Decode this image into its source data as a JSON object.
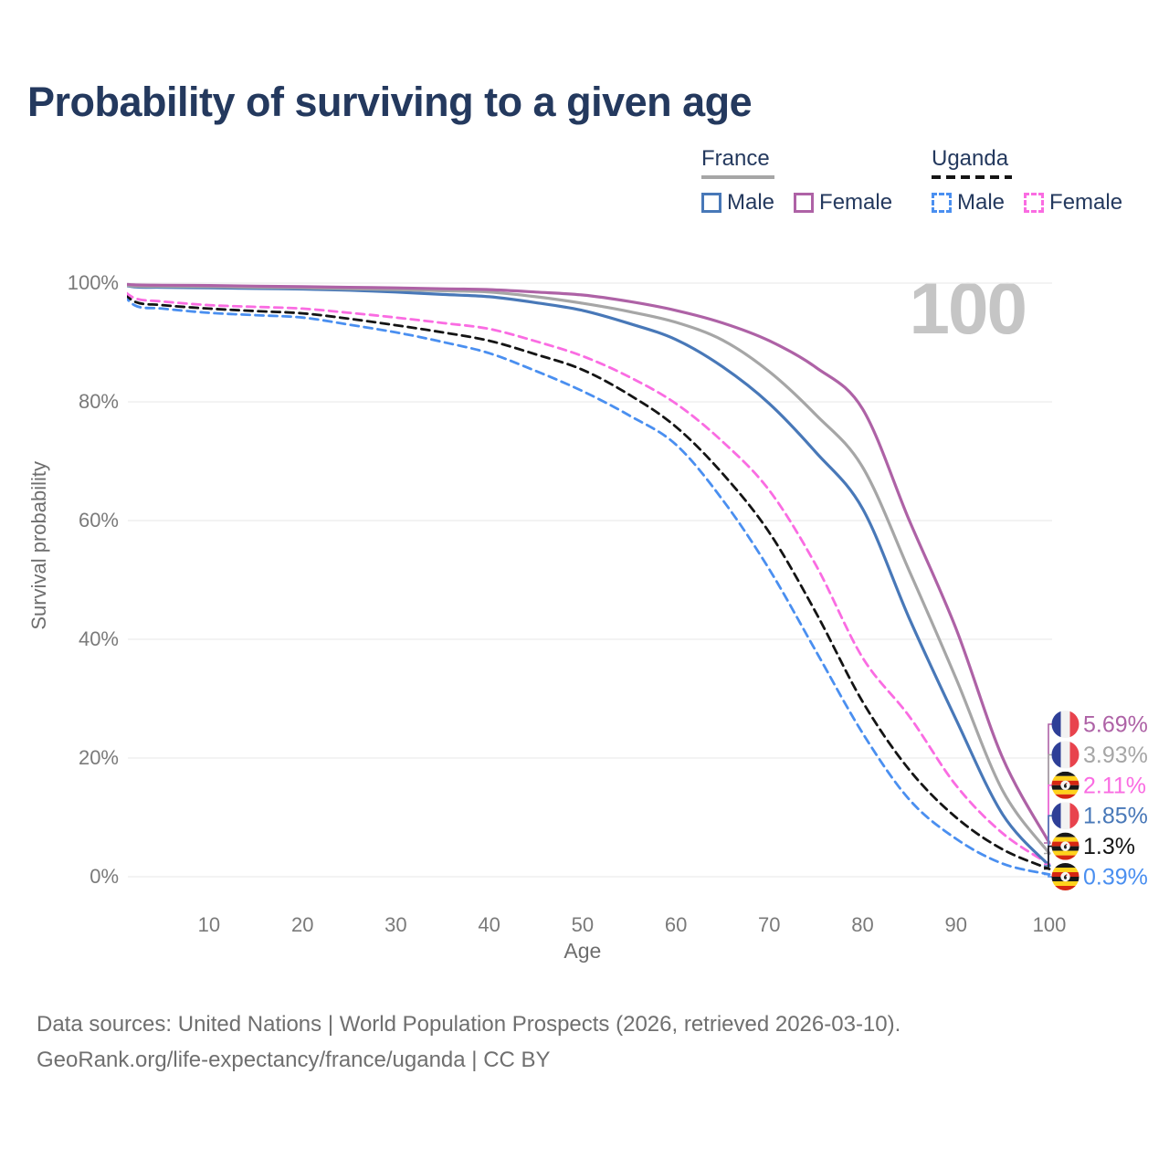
{
  "title": "Probability of surviving to a given age",
  "watermark_age": "100",
  "legend": {
    "groups": [
      {
        "name": "France",
        "line_style": "solid",
        "line_color": "#a6a6a6",
        "items": [
          {
            "label": "Male",
            "color": "#4878b8",
            "dashed": false
          },
          {
            "label": "Female",
            "color": "#ae62a6",
            "dashed": false
          }
        ]
      },
      {
        "name": "Uganda",
        "line_style": "dashed",
        "line_color": "#141414",
        "items": [
          {
            "label": "Male",
            "color": "#4a8ff0",
            "dashed": true
          },
          {
            "label": "Female",
            "color": "#fa6ce2",
            "dashed": true
          }
        ]
      }
    ]
  },
  "chart_data": {
    "type": "line",
    "title": "Probability of surviving to a given age",
    "xlabel": "Age",
    "ylabel": "Survival probability",
    "xlim": [
      0,
      100
    ],
    "ylim": [
      0,
      100
    ],
    "grid": "horizontal",
    "legend_position": "top-right",
    "x_ticks": [
      {
        "value": 10,
        "label": "10"
      },
      {
        "value": 20,
        "label": "20"
      },
      {
        "value": 30,
        "label": "30"
      },
      {
        "value": 40,
        "label": "40"
      },
      {
        "value": 50,
        "label": "50"
      },
      {
        "value": 60,
        "label": "60"
      },
      {
        "value": 70,
        "label": "70"
      },
      {
        "value": 80,
        "label": "80"
      },
      {
        "value": 90,
        "label": "90"
      },
      {
        "value": 100,
        "label": "100"
      }
    ],
    "y_ticks": [
      {
        "value": 0,
        "label": "0%"
      },
      {
        "value": 20,
        "label": "20%"
      },
      {
        "value": 40,
        "label": "40%"
      },
      {
        "value": 60,
        "label": "60%"
      },
      {
        "value": 80,
        "label": "80%"
      },
      {
        "value": 100,
        "label": "100%"
      }
    ],
    "x": [
      0,
      2,
      5,
      10,
      15,
      20,
      25,
      30,
      35,
      40,
      45,
      50,
      55,
      60,
      65,
      70,
      75,
      80,
      85,
      90,
      95,
      100
    ],
    "series": [
      {
        "id": "uganda-male",
        "name": "Uganda Male",
        "country": "Uganda",
        "sex": "Male",
        "flag": "uganda",
        "color": "#4a8ff0",
        "dashed": true,
        "end_label": "0.39%",
        "values": [
          100,
          96.3,
          95.7,
          95.0,
          94.6,
          94.2,
          93.0,
          91.7,
          90.1,
          88.2,
          85.2,
          81.8,
          77.7,
          72.8,
          63.5,
          51.8,
          38.0,
          24.2,
          13.0,
          6.4,
          2.2,
          0.39
        ]
      },
      {
        "id": "uganda-total",
        "name": "Uganda",
        "country": "Uganda",
        "sex": "Both",
        "flag": "uganda",
        "color": "#141414",
        "dashed": true,
        "end_label": "1.3%",
        "values": [
          100,
          96.9,
          96.3,
          95.7,
          95.3,
          94.9,
          94.0,
          92.9,
          91.7,
          90.3,
          88.0,
          85.4,
          81.2,
          75.8,
          67.9,
          58.0,
          44.5,
          29.5,
          18.0,
          10.0,
          4.6,
          1.3
        ]
      },
      {
        "id": "uganda-female",
        "name": "Uganda Female",
        "country": "Uganda",
        "sex": "Female",
        "flag": "uganda",
        "color": "#fa6ce2",
        "dashed": true,
        "end_label": "2.11%",
        "values": [
          100,
          97.5,
          96.9,
          96.3,
          96.0,
          95.7,
          95.0,
          94.2,
          93.3,
          92.3,
          90.2,
          87.7,
          84.2,
          79.7,
          73.3,
          65.1,
          52.5,
          36.9,
          27.0,
          15.4,
          7.3,
          2.11
        ]
      },
      {
        "id": "france-male",
        "name": "France Male",
        "country": "France",
        "sex": "Male",
        "flag": "france",
        "color": "#4878b8",
        "dashed": false,
        "end_label": "1.85%",
        "values": [
          100,
          99.35,
          99.3,
          99.2,
          99.1,
          99.0,
          98.8,
          98.5,
          98.1,
          97.7,
          96.7,
          95.4,
          93.2,
          90.5,
          85.9,
          79.7,
          71.5,
          62.0,
          43.5,
          26.5,
          10.5,
          1.85
        ]
      },
      {
        "id": "france-total",
        "name": "France",
        "country": "France",
        "sex": "Both",
        "flag": "france",
        "color": "#a6a6a6",
        "dashed": false,
        "end_label": "3.93%",
        "values": [
          100,
          99.5,
          99.45,
          99.4,
          99.3,
          99.2,
          99.05,
          98.9,
          98.7,
          98.5,
          97.7,
          96.6,
          95.2,
          93.4,
          90.4,
          85.1,
          77.8,
          69.0,
          51.5,
          33.4,
          14.5,
          3.93
        ]
      },
      {
        "id": "france-female",
        "name": "France Female",
        "country": "France",
        "sex": "Female",
        "flag": "france",
        "color": "#ae62a6",
        "dashed": false,
        "end_label": "5.69%",
        "values": [
          100,
          99.7,
          99.65,
          99.6,
          99.5,
          99.4,
          99.3,
          99.2,
          99.05,
          98.9,
          98.5,
          98.0,
          96.9,
          95.4,
          93.3,
          90.3,
          85.8,
          78.8,
          60.0,
          41.8,
          20.0,
          5.69
        ]
      }
    ]
  },
  "footer": {
    "line1": "Data sources: United Nations | World Population Prospects (2026, retrieved 2026-03-10).",
    "line2": "GeoRank.org/life-expectancy/france/uganda | CC BY"
  }
}
